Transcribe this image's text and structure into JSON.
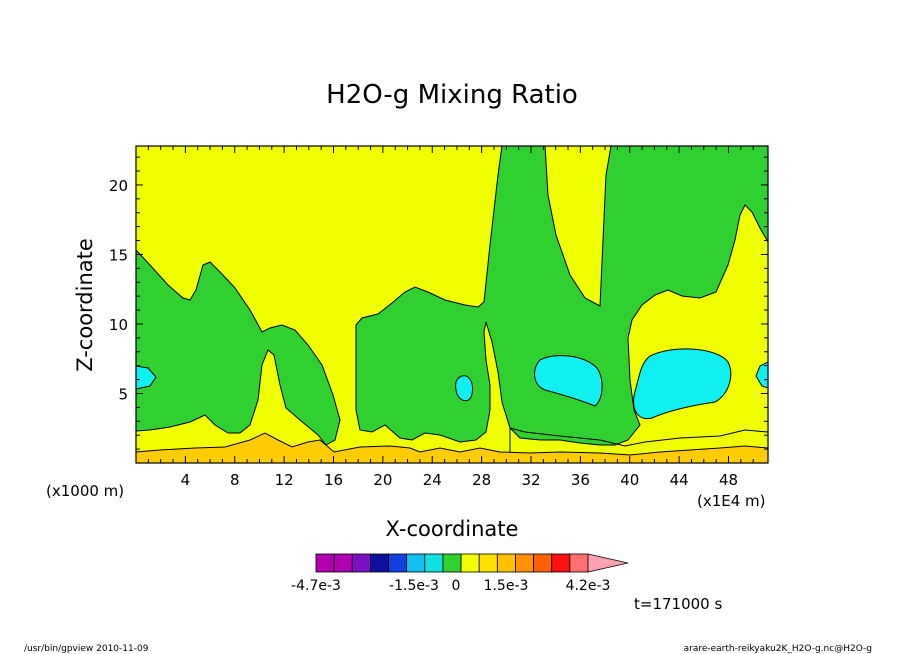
{
  "chart_data": {
    "type": "contour",
    "title": "H2O-g Mixing Ratio",
    "xlabel": "X-coordinate",
    "ylabel": "Z-coordinate",
    "x_unit_left": "(x1000 m)",
    "x_unit_right": "(x1E4 m)",
    "xlim": [
      0,
      51.2
    ],
    "ylim": [
      0,
      22.8
    ],
    "x_ticks": [
      "4",
      "8",
      "12",
      "16",
      "20",
      "24",
      "28",
      "32",
      "36",
      "40",
      "44",
      "48"
    ],
    "y_ticks": [
      "5",
      "10",
      "15",
      "20"
    ],
    "time_label": "t=171000 s",
    "colorbar": {
      "colors": [
        "#b000b0",
        "#b000b0",
        "#7a10c0",
        "#1010a0",
        "#1040e0",
        "#10c0f0",
        "#10e0e0",
        "#30d030",
        "#f0ff00",
        "#ffe000",
        "#ffc000",
        "#ff9000",
        "#ff6000",
        "#ff1010",
        "#ff7070",
        "#ffa0b0"
      ],
      "labels": [
        "-4.7e-3",
        "-1.5e-3",
        "0",
        "1.5e-3",
        "4.2e-3"
      ]
    },
    "fills": {
      "background": "#f0ff00",
      "green": "#30d030",
      "cyan": "#10f0f0",
      "orange": "#ffcc00"
    }
  },
  "footer": {
    "left": "/usr/bin/gpview   2010-11-09",
    "right": "arare-earth-reikyaku2K_H2O-g.nc@H2O-g"
  }
}
